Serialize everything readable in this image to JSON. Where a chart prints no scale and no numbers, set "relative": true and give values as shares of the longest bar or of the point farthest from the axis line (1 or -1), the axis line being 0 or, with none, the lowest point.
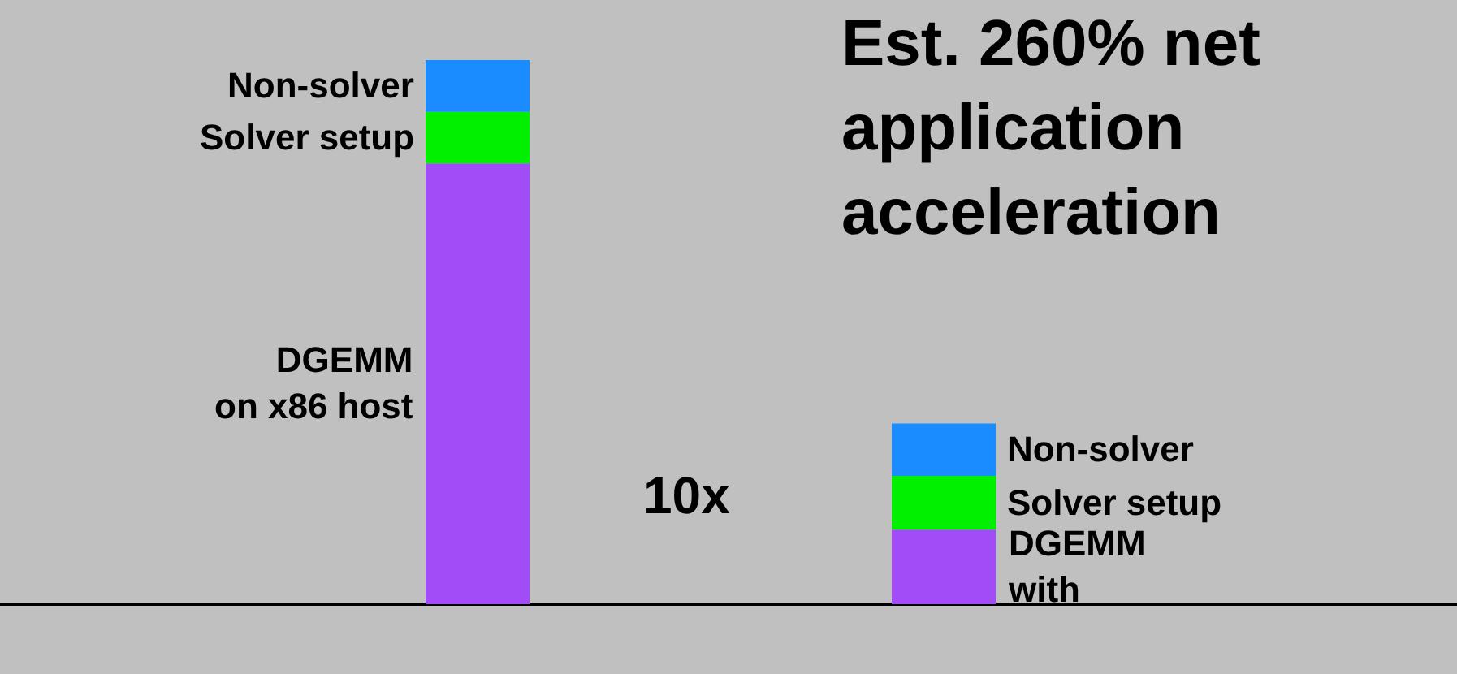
{
  "chart_data": {
    "type": "bar",
    "stacked": true,
    "relative": true,
    "legend": false,
    "title": "Est. 260% net\napplication\nacceleration",
    "categories": [
      null,
      null
    ],
    "series": [
      {
        "color": "#a24cf7",
        "values": [
          0.81,
          0.137
        ]
      },
      {
        "name": "Solver setup",
        "color": "#00f000",
        "values": [
          0.095,
          0.099
        ]
      },
      {
        "name": "Non-solver",
        "color": "#1a8cff",
        "values": [
          0.095,
          0.096
        ]
      }
    ],
    "annotations": [
      "DGEMM\non x86 host",
      "DGEMM\nwith",
      "10x"
    ]
  }
}
